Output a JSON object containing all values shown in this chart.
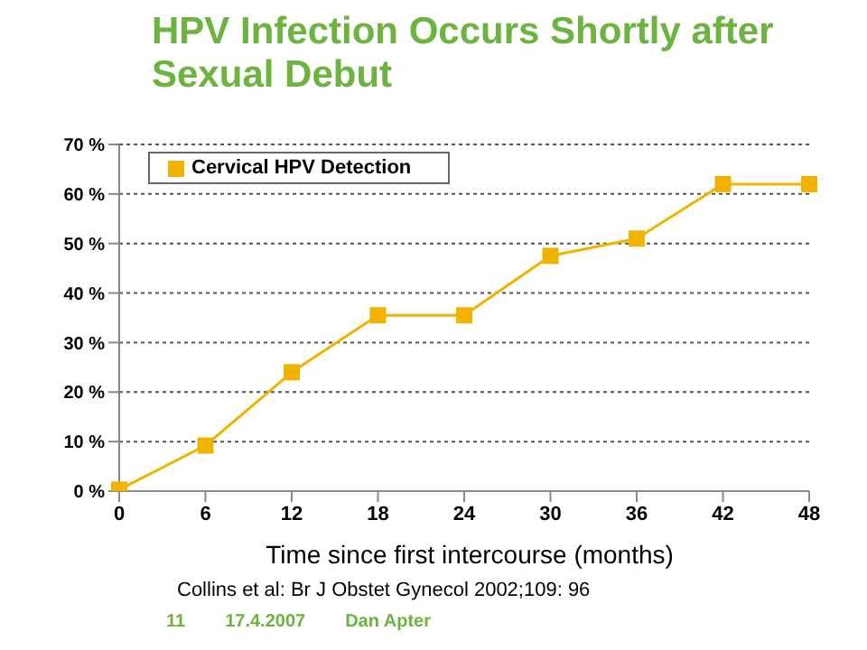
{
  "chart_data": {
    "type": "line",
    "title": "HPV Infection Occurs Shortly after Sexual Debut",
    "xlabel": "Time since first intercourse (months)",
    "categories": [
      "0",
      "6",
      "12",
      "18",
      "24",
      "30",
      "36",
      "42",
      "48"
    ],
    "series": [
      {
        "name": "Cervical HPV Detection",
        "color": "#f0b400",
        "values": [
          0.3,
          9.2,
          24,
          35.5,
          35.5,
          47.5,
          51,
          62,
          62
        ]
      }
    ],
    "ylim": [
      0,
      70
    ],
    "yticks": [
      {
        "value": 0,
        "label": "0 %"
      },
      {
        "value": 10,
        "label": "10 %"
      },
      {
        "value": 20,
        "label": "20 %"
      },
      {
        "value": 30,
        "label": "30 %"
      },
      {
        "value": 40,
        "label": "40 %"
      },
      {
        "value": 50,
        "label": "50 %"
      },
      {
        "value": 60,
        "label": "60 %"
      },
      {
        "value": 70,
        "label": "70 %"
      }
    ],
    "grid": "y",
    "legend": "top left",
    "marker": "square",
    "line_style": "solid",
    "annotations": [
      "Collins et al: Br J Obstet Gynecol 2002;109: 96",
      "11",
      "17.4.2007",
      "Dan Apter"
    ]
  }
}
